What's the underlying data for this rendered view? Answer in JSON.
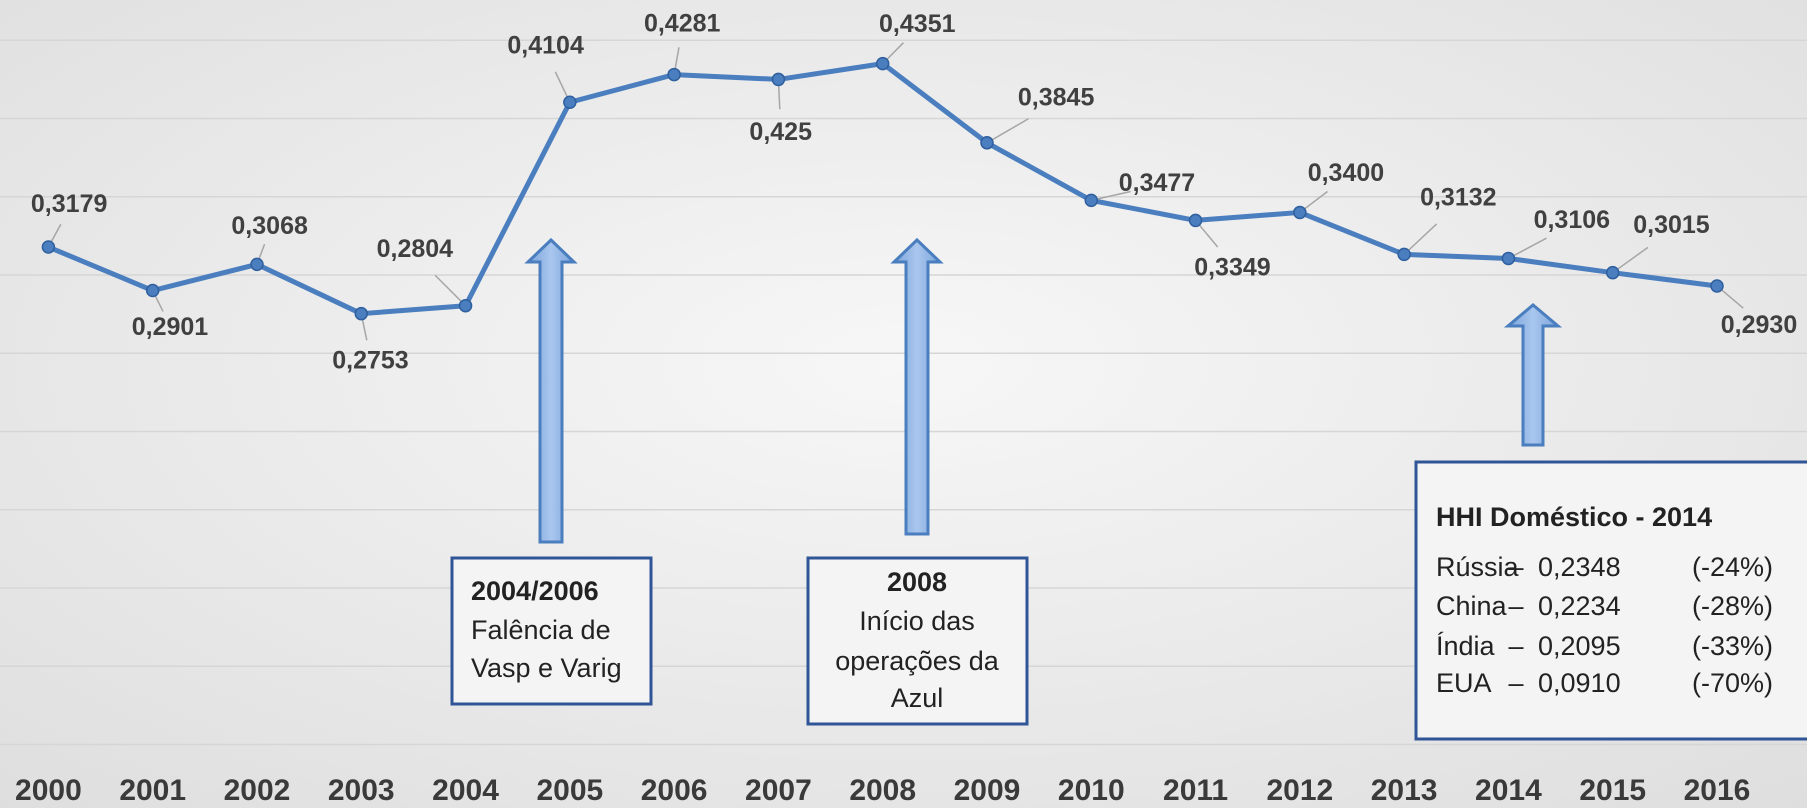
{
  "chart_data": {
    "type": "line",
    "categories": [
      "2000",
      "2001",
      "2002",
      "2003",
      "2004",
      "2005",
      "2006",
      "2007",
      "2008",
      "2009",
      "2010",
      "2011",
      "2012",
      "2013",
      "2014",
      "2015",
      "2016"
    ],
    "values": [
      0.3179,
      0.2901,
      0.3068,
      0.2753,
      0.2804,
      0.4104,
      0.4281,
      0.425,
      0.4351,
      0.3845,
      0.3477,
      0.3349,
      0.34,
      0.3132,
      0.3106,
      0.3015,
      0.293
    ],
    "value_labels": [
      "0,3179",
      "0,2901",
      "0,3068",
      "0,2753",
      "0,2804",
      "0,4104",
      "0,4281",
      "0,425",
      "0,4351",
      "0,3845",
      "0,3477",
      "0,3349",
      "0,3400",
      "0,3132",
      "0,3106",
      "0,3015",
      "0,2930"
    ],
    "color": "#4a7ebf",
    "ylim": [
      0,
      0.45
    ],
    "yticks": [
      0,
      0.05,
      0.1,
      0.15,
      0.2,
      0.25,
      0.3,
      0.35,
      0.4,
      0.45
    ],
    "grid": true,
    "annotations": [
      {
        "title": "2004/2006",
        "lines": [
          "Falência de",
          "Vasp e Varig"
        ]
      },
      {
        "title": "2008",
        "lines": [
          "Início das",
          "operações da",
          "Azul"
        ]
      }
    ],
    "hhi_box": {
      "title": "HHI Doméstico - 2014",
      "rows": [
        [
          "Rússia",
          "–",
          "0,2348",
          "(-24%)"
        ],
        [
          "China",
          "–",
          "0,2234",
          "(-28%)"
        ],
        [
          "Índia",
          "–",
          "0,2095",
          "(-33%)"
        ],
        [
          "EUA",
          "–",
          "0,0910",
          "(-70%)"
        ]
      ]
    }
  }
}
